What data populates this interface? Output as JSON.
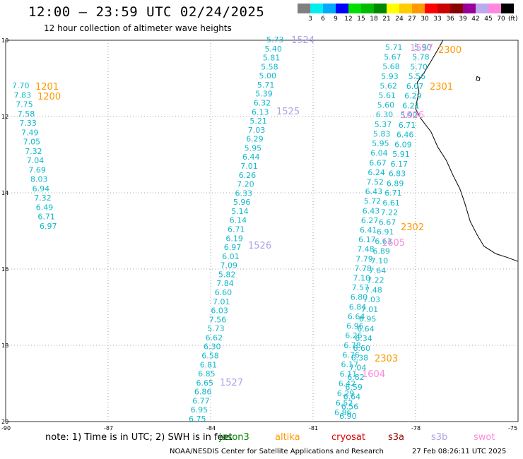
{
  "header": {
    "title": "12:00 – 23:59 UTC 02/24/2025",
    "subtitle": "12 hour collection of altimeter wave heights"
  },
  "colorbar": {
    "unit": "(ft)",
    "colors": [
      "#808080",
      "#00eeee",
      "#00aaff",
      "#0000ff",
      "#00dd00",
      "#00bb00",
      "#008800",
      "#ffff00",
      "#ffcc00",
      "#ff9900",
      "#ff0000",
      "#cc0000",
      "#880000",
      "#990099",
      "#bbaaee",
      "#ff88dd",
      "#000000"
    ],
    "labels": [
      "3",
      "6",
      "9",
      "12",
      "15",
      "18",
      "21",
      "24",
      "27",
      "30",
      "33",
      "36",
      "39",
      "42",
      "45",
      "70"
    ]
  },
  "axes": {
    "lat_labels": [
      "10",
      "12",
      "14",
      "16",
      "18",
      "20"
    ],
    "lon_labels": [
      "-90",
      "-87",
      "-84",
      "-81",
      "-78",
      "-75"
    ]
  },
  "colors": {
    "wave_text": "#11b8cc",
    "jason3": "#008800",
    "altika": "#ff9900",
    "cryosat": "#dd0000",
    "s3a": "#990000",
    "s3b": "#b0a0e8",
    "swot": "#ff88dd",
    "coastline": "#000000",
    "grid": "#888888"
  },
  "tracks": [
    {
      "values": [
        "5.73",
        "5.40",
        "5.81",
        "5.58",
        "5.00",
        "5.71",
        "5.39",
        "6.32",
        "6.13",
        "5.21",
        "7.03",
        "6.29",
        "5.95",
        "6.44",
        "7.01",
        "6.26",
        "7.20",
        "6.33",
        "5.96",
        "5.14",
        "6.14",
        "6.71",
        "6.19",
        "6.97",
        "6.01",
        "7.09",
        "5.82",
        "7.84",
        "6.60",
        "7.01",
        "6.03",
        "7.56",
        "5.73",
        "6.62",
        "6.30",
        "6.58",
        "6.81",
        "6.85",
        "6.65",
        "6.86",
        "6.77",
        "6.95",
        "6.75"
      ]
    },
    {
      "values": [
        "7.70",
        "7.83",
        "7.75",
        "7.58",
        "7.33",
        "7.49",
        "7.05",
        "7.32",
        "7.04",
        "7.69",
        "8.03",
        "6.94",
        "7.32",
        "6.49",
        "6.71",
        "6.97"
      ]
    },
    {
      "values": [
        "5.71",
        "5.67",
        "5.68",
        "5.93",
        "5.62",
        "5.61",
        "5.60",
        "6.30",
        "5.37",
        "5.83",
        "5.95",
        "6.04",
        "6.67",
        "6.24",
        "7.52",
        "6.43",
        "5.72",
        "6.43",
        "6.27",
        "6.41",
        "6.17",
        "7.48",
        "7.79",
        "7.78",
        "7.10",
        "7.57",
        "6.80",
        "6.84",
        "6.64",
        "6.96",
        "6.26",
        "6.78",
        "6.76",
        "6.17",
        "6.11",
        "6.42",
        "6.29",
        "6.52",
        "6.86"
      ]
    },
    {
      "values": [
        "5.90",
        "5.78",
        "5.70",
        "5.56",
        "6.07",
        "6.29",
        "6.21",
        "5.92",
        "6.71",
        "6.46",
        "6.09",
        "5.91",
        "6.17",
        "6.83",
        "6.89",
        "6.71",
        "6.61",
        "7.22",
        "6.67",
        "6.91",
        "6.63",
        "6.89",
        "7.10",
        "7.64",
        "7.22",
        "7.48",
        "7.03",
        "7.01",
        "6.95",
        "6.64",
        "6.34",
        "6.60",
        "6.38",
        "7.04",
        "6.82",
        "6.59",
        "6.64",
        "6.56",
        "6.90"
      ]
    }
  ],
  "pass_labels": [
    {
      "text": "1524",
      "sat": "s3b"
    },
    {
      "text": "1201",
      "sat": "altika"
    },
    {
      "text": "1200",
      "sat": "altika"
    },
    {
      "text": "1525",
      "sat": "s3b"
    },
    {
      "text": "1526",
      "sat": "s3b"
    },
    {
      "text": "1527",
      "sat": "s3b"
    },
    {
      "text": "1557",
      "sat": "swot"
    },
    {
      "text": "2300",
      "sat": "altika"
    },
    {
      "text": "2301",
      "sat": "altika"
    },
    {
      "text": "1606",
      "sat": "swot"
    },
    {
      "text": "2302",
      "sat": "altika"
    },
    {
      "text": "1605",
      "sat": "swot"
    },
    {
      "text": "2303",
      "sat": "altika"
    },
    {
      "text": "1604",
      "sat": "swot"
    }
  ],
  "footer": {
    "note": "note:  1) Time is in UTC; 2) SWH is in feet",
    "satellites": [
      "jason3",
      "altika",
      "cryosat",
      "s3a",
      "s3b",
      "swot"
    ],
    "credit": "NOAA/NESDIS Center for Satellite Applications and Research",
    "timestamp": "27 Feb 08:26:11 UTC 2025"
  }
}
